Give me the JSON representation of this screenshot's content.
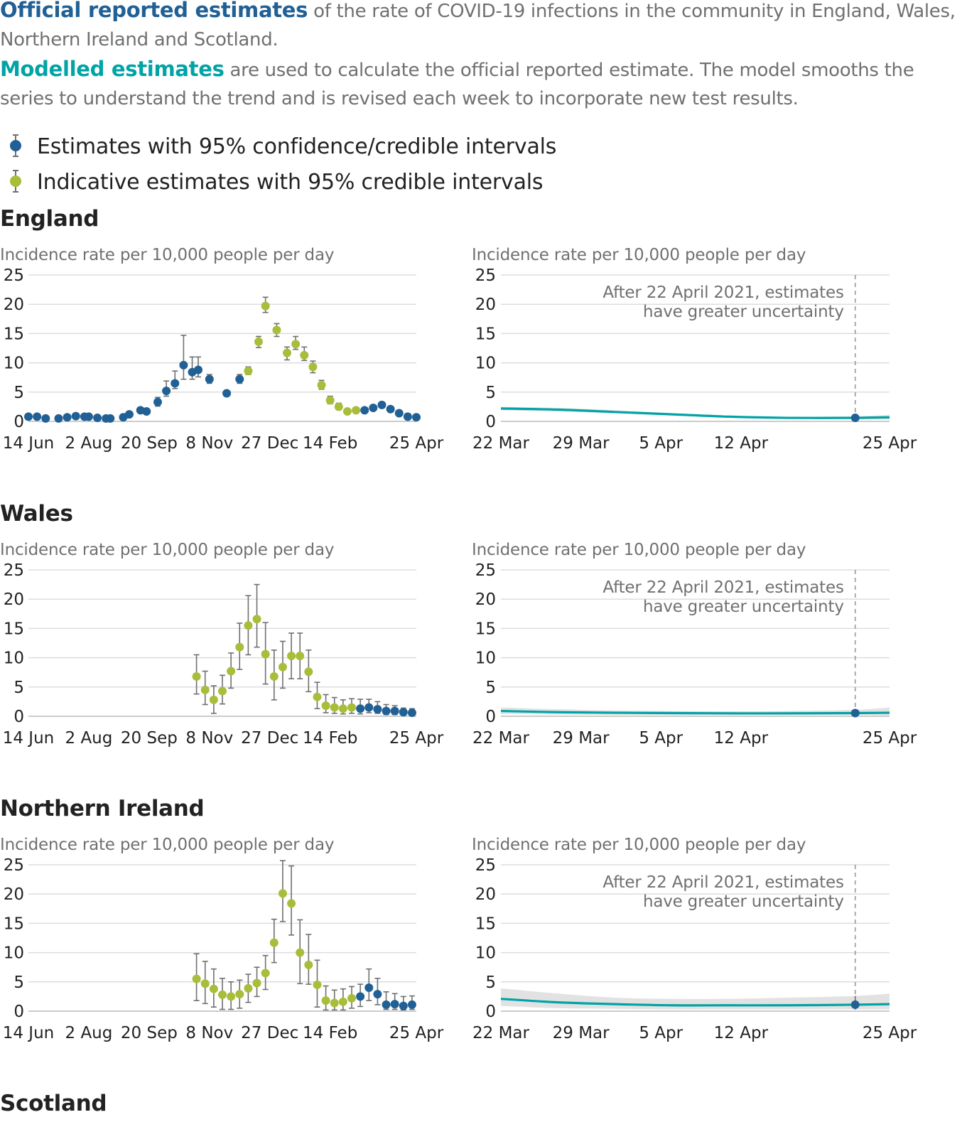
{
  "intro": {
    "official_lead": "Official reported estimates",
    "official_rest": " of the rate of COVID-19 infections in the community in England, Wales, Northern Ireland and Scotland.",
    "modelled_lead": "Modelled estimates",
    "modelled_rest": " are used to calculate the official reported estimate. The model smooths the series to understand the trend and is revised each week to incorporate new test results."
  },
  "legend": [
    {
      "label": "Estimates with 95% confidence/credible intervals",
      "color": "#206095"
    },
    {
      "label": "Indicative estimates with 95% credible intervals",
      "color": "#a8bd3a"
    }
  ],
  "colors": {
    "official": "#206095",
    "indicative": "#a8bd3a",
    "modelled": "#00a3a6",
    "band": "#e2e2e2",
    "errorbar": "#707070"
  },
  "chart_data": [
    {
      "region": "England",
      "left": {
        "type": "scatter",
        "ylabel": "Incidence rate per 10,000 people per day",
        "ylim": [
          0,
          25
        ],
        "yticks": [
          0,
          5,
          10,
          15,
          20,
          25
        ],
        "xticks": [
          "14 Jun",
          "2 Aug",
          "20 Sep",
          "8 Nov",
          "27 Dec",
          "14 Feb",
          "25 Apr"
        ],
        "xlim_weeks": [
          0,
          45
        ],
        "points": [
          {
            "w": 0,
            "y": 0.8,
            "lo": 0.5,
            "hi": 1.1,
            "k": "o"
          },
          {
            "w": 1,
            "y": 0.8,
            "lo": 0.5,
            "hi": 1.1,
            "k": "o"
          },
          {
            "w": 2,
            "y": 0.5,
            "lo": 0.3,
            "hi": 0.8,
            "k": "o"
          },
          {
            "w": 3.5,
            "y": 0.5,
            "lo": 0.3,
            "hi": 0.8,
            "k": "o"
          },
          {
            "w": 4.5,
            "y": 0.7,
            "lo": 0.4,
            "hi": 1.0,
            "k": "o"
          },
          {
            "w": 5.5,
            "y": 0.9,
            "lo": 0.6,
            "hi": 1.3,
            "k": "o"
          },
          {
            "w": 6.5,
            "y": 0.8,
            "lo": 0.5,
            "hi": 1.1,
            "k": "o"
          },
          {
            "w": 7,
            "y": 0.8,
            "lo": 0.5,
            "hi": 1.1,
            "k": "o"
          },
          {
            "w": 8,
            "y": 0.6,
            "lo": 0.4,
            "hi": 0.9,
            "k": "o"
          },
          {
            "w": 9,
            "y": 0.5,
            "lo": 0.3,
            "hi": 0.8,
            "k": "o"
          },
          {
            "w": 9.5,
            "y": 0.5,
            "lo": 0.3,
            "hi": 0.8,
            "k": "o"
          },
          {
            "w": 11,
            "y": 0.7,
            "lo": 0.4,
            "hi": 1.0,
            "k": "o"
          },
          {
            "w": 11.7,
            "y": 1.2,
            "lo": 0.9,
            "hi": 1.6,
            "k": "o"
          },
          {
            "w": 13,
            "y": 1.9,
            "lo": 1.5,
            "hi": 2.3,
            "k": "o"
          },
          {
            "w": 13.7,
            "y": 1.7,
            "lo": 1.3,
            "hi": 2.1,
            "k": "o"
          },
          {
            "w": 15,
            "y": 3.3,
            "lo": 2.6,
            "hi": 4.1,
            "k": "o"
          },
          {
            "w": 16,
            "y": 5.2,
            "lo": 4.3,
            "hi": 6.9,
            "k": "o"
          },
          {
            "w": 17,
            "y": 6.5,
            "lo": 5.6,
            "hi": 8.6,
            "k": "o"
          },
          {
            "w": 18,
            "y": 9.6,
            "lo": 7.2,
            "hi": 14.7,
            "k": "o"
          },
          {
            "w": 19,
            "y": 8.4,
            "lo": 7.2,
            "hi": 11.0,
            "k": "o"
          },
          {
            "w": 19.7,
            "y": 8.8,
            "lo": 7.6,
            "hi": 11.0,
            "k": "o"
          },
          {
            "w": 21,
            "y": 7.2,
            "lo": 6.5,
            "hi": 8.0,
            "k": "o"
          },
          {
            "w": 23,
            "y": 4.8,
            "lo": 4.3,
            "hi": 5.3,
            "k": "o"
          },
          {
            "w": 24.5,
            "y": 7.2,
            "lo": 6.5,
            "hi": 8.0,
            "k": "o"
          },
          {
            "w": 25.5,
            "y": 8.6,
            "lo": 8.0,
            "hi": 9.3,
            "k": "i"
          },
          {
            "w": 26.7,
            "y": 13.6,
            "lo": 12.6,
            "hi": 14.5,
            "k": "i"
          },
          {
            "w": 27.5,
            "y": 19.7,
            "lo": 18.6,
            "hi": 21.2,
            "k": "i"
          },
          {
            "w": 28.8,
            "y": 15.6,
            "lo": 14.5,
            "hi": 16.7,
            "k": "i"
          },
          {
            "w": 30,
            "y": 11.7,
            "lo": 10.5,
            "hi": 12.7,
            "k": "i"
          },
          {
            "w": 31,
            "y": 13.2,
            "lo": 12.3,
            "hi": 14.5,
            "k": "i"
          },
          {
            "w": 32,
            "y": 11.3,
            "lo": 10.4,
            "hi": 12.7,
            "k": "i"
          },
          {
            "w": 33,
            "y": 9.3,
            "lo": 8.3,
            "hi": 10.3,
            "k": "i"
          },
          {
            "w": 34,
            "y": 6.2,
            "lo": 5.5,
            "hi": 7.0,
            "k": "i"
          },
          {
            "w": 35,
            "y": 3.6,
            "lo": 3.0,
            "hi": 4.3,
            "k": "i"
          },
          {
            "w": 36,
            "y": 2.5,
            "lo": 2.0,
            "hi": 3.1,
            "k": "i"
          },
          {
            "w": 37,
            "y": 1.7,
            "lo": 1.4,
            "hi": 2.1,
            "k": "i"
          },
          {
            "w": 38,
            "y": 1.9,
            "lo": 1.6,
            "hi": 2.3,
            "k": "i"
          },
          {
            "w": 39,
            "y": 1.9,
            "lo": 1.6,
            "hi": 2.3,
            "k": "o"
          },
          {
            "w": 40,
            "y": 2.3,
            "lo": 2.0,
            "hi": 2.6,
            "k": "o"
          },
          {
            "w": 41,
            "y": 2.8,
            "lo": 2.4,
            "hi": 3.2,
            "k": "o"
          },
          {
            "w": 42,
            "y": 2.1,
            "lo": 1.8,
            "hi": 2.4,
            "k": "o"
          },
          {
            "w": 43,
            "y": 1.4,
            "lo": 1.1,
            "hi": 1.7,
            "k": "o"
          },
          {
            "w": 44,
            "y": 0.8,
            "lo": 0.6,
            "hi": 1.0,
            "k": "o"
          },
          {
            "w": 45,
            "y": 0.7,
            "lo": 0.5,
            "hi": 0.9,
            "k": "o"
          }
        ]
      },
      "right": {
        "type": "line",
        "ylabel": "Incidence rate per 10,000 people per day",
        "ylim": [
          0,
          25
        ],
        "yticks": [
          0,
          5,
          10,
          15,
          20,
          25
        ],
        "xticks": [
          "22 Mar",
          "29 Mar",
          "5 Apr",
          "12 Apr",
          "25 Apr"
        ],
        "xlim_days": [
          0,
          34
        ],
        "annotation": [
          "After 22 April 2021, estimates",
          "have greater uncertainty"
        ],
        "marker_day": 31,
        "x": [
          0,
          5,
          10,
          15,
          20,
          25,
          31,
          34
        ],
        "y": [
          2.2,
          2.0,
          1.6,
          1.2,
          0.8,
          0.6,
          0.6,
          0.7
        ],
        "lo": [
          1.9,
          1.7,
          1.4,
          1.0,
          0.6,
          0.45,
          0.35,
          0.3
        ],
        "hi": [
          2.5,
          2.3,
          1.9,
          1.4,
          1.0,
          0.8,
          0.9,
          1.1
        ],
        "official_point": {
          "day": 31,
          "y": 0.6,
          "lo": 0.35,
          "hi": 0.9
        }
      }
    },
    {
      "region": "Wales",
      "left": {
        "type": "scatter",
        "ylabel": "Incidence rate per 10,000 people per day",
        "ylim": [
          0,
          25
        ],
        "yticks": [
          0,
          5,
          10,
          15,
          20,
          25
        ],
        "xticks": [
          "14 Jun",
          "2 Aug",
          "20 Sep",
          "8 Nov",
          "27 Dec",
          "14 Feb",
          "25 Apr"
        ],
        "xlim_weeks": [
          0,
          45
        ],
        "points": [
          {
            "w": 19.5,
            "y": 6.8,
            "lo": 3.8,
            "hi": 10.5,
            "k": "i"
          },
          {
            "w": 20.5,
            "y": 4.5,
            "lo": 2.0,
            "hi": 7.7,
            "k": "i"
          },
          {
            "w": 21.5,
            "y": 2.8,
            "lo": 0.5,
            "hi": 5.2,
            "k": "i"
          },
          {
            "w": 22.5,
            "y": 4.3,
            "lo": 2.1,
            "hi": 7.0,
            "k": "i"
          },
          {
            "w": 23.5,
            "y": 7.7,
            "lo": 4.8,
            "hi": 10.8,
            "k": "i"
          },
          {
            "w": 24.5,
            "y": 11.8,
            "lo": 8.0,
            "hi": 15.9,
            "k": "i"
          },
          {
            "w": 25.5,
            "y": 15.5,
            "lo": 10.5,
            "hi": 20.6,
            "k": "i"
          },
          {
            "w": 26.5,
            "y": 16.6,
            "lo": 11.8,
            "hi": 22.5,
            "k": "i"
          },
          {
            "w": 27.5,
            "y": 10.6,
            "lo": 5.5,
            "hi": 16.0,
            "k": "i"
          },
          {
            "w": 28.5,
            "y": 6.8,
            "lo": 2.8,
            "hi": 11.3,
            "k": "i"
          },
          {
            "w": 29.5,
            "y": 8.4,
            "lo": 4.8,
            "hi": 12.8,
            "k": "i"
          },
          {
            "w": 30.5,
            "y": 10.3,
            "lo": 6.4,
            "hi": 14.2,
            "k": "i"
          },
          {
            "w": 31.5,
            "y": 10.3,
            "lo": 6.4,
            "hi": 14.2,
            "k": "i"
          },
          {
            "w": 32.5,
            "y": 7.6,
            "lo": 4.2,
            "hi": 11.3,
            "k": "i"
          },
          {
            "w": 33.5,
            "y": 3.3,
            "lo": 1.3,
            "hi": 5.8,
            "k": "i"
          },
          {
            "w": 34.5,
            "y": 1.8,
            "lo": 0.6,
            "hi": 3.7,
            "k": "i"
          },
          {
            "w": 35.5,
            "y": 1.5,
            "lo": 0.5,
            "hi": 3.2,
            "k": "i"
          },
          {
            "w": 36.5,
            "y": 1.3,
            "lo": 0.4,
            "hi": 2.8,
            "k": "i"
          },
          {
            "w": 37.5,
            "y": 1.5,
            "lo": 0.5,
            "hi": 3.0,
            "k": "i"
          },
          {
            "w": 38.5,
            "y": 1.3,
            "lo": 0.4,
            "hi": 2.9,
            "k": "o"
          },
          {
            "w": 39.5,
            "y": 1.5,
            "lo": 0.6,
            "hi": 2.9,
            "k": "o"
          },
          {
            "w": 40.5,
            "y": 1.2,
            "lo": 0.5,
            "hi": 2.5,
            "k": "o"
          },
          {
            "w": 41.5,
            "y": 0.9,
            "lo": 0.3,
            "hi": 2.0,
            "k": "o"
          },
          {
            "w": 42.5,
            "y": 0.9,
            "lo": 0.3,
            "hi": 1.8,
            "k": "o"
          },
          {
            "w": 43.5,
            "y": 0.7,
            "lo": 0.2,
            "hi": 1.4,
            "k": "o"
          },
          {
            "w": 44.5,
            "y": 0.6,
            "lo": 0.2,
            "hi": 1.3,
            "k": "o"
          }
        ]
      },
      "right": {
        "type": "line",
        "ylabel": "Incidence rate per 10,000 people per day",
        "ylim": [
          0,
          25
        ],
        "yticks": [
          0,
          5,
          10,
          15,
          20,
          25
        ],
        "xticks": [
          "22 Mar",
          "29 Mar",
          "5 Apr",
          "12 Apr",
          "25 Apr"
        ],
        "xlim_days": [
          0,
          34
        ],
        "annotation": [
          "After 22 April 2021, estimates",
          "have greater uncertainty"
        ],
        "marker_day": 31,
        "x": [
          0,
          5,
          10,
          15,
          20,
          25,
          31,
          34
        ],
        "y": [
          0.9,
          0.7,
          0.6,
          0.55,
          0.5,
          0.5,
          0.55,
          0.6
        ],
        "lo": [
          0.4,
          0.3,
          0.25,
          0.2,
          0.2,
          0.2,
          0.2,
          0.15
        ],
        "hi": [
          1.5,
          1.2,
          1.0,
          0.9,
          0.85,
          0.9,
          1.1,
          1.5
        ],
        "official_point": {
          "day": 31,
          "y": 0.55,
          "lo": 0.2,
          "hi": 1.1
        }
      }
    },
    {
      "region": "Northern Ireland",
      "left": {
        "type": "scatter",
        "ylabel": "Incidence rate per 10,000 people per day",
        "ylim": [
          0,
          25
        ],
        "yticks": [
          0,
          5,
          10,
          15,
          20,
          25
        ],
        "xticks": [
          "14 Jun",
          "2 Aug",
          "20 Sep",
          "8 Nov",
          "27 Dec",
          "14 Feb",
          "25 Apr"
        ],
        "xlim_weeks": [
          0,
          45
        ],
        "points": [
          {
            "w": 19.5,
            "y": 5.5,
            "lo": 1.8,
            "hi": 9.8,
            "k": "i"
          },
          {
            "w": 20.5,
            "y": 4.7,
            "lo": 1.3,
            "hi": 8.5,
            "k": "i"
          },
          {
            "w": 21.5,
            "y": 3.8,
            "lo": 0.7,
            "hi": 7.2,
            "k": "i"
          },
          {
            "w": 22.5,
            "y": 2.8,
            "lo": 0.3,
            "hi": 5.6,
            "k": "i"
          },
          {
            "w": 23.5,
            "y": 2.5,
            "lo": 0.3,
            "hi": 5.0,
            "k": "i"
          },
          {
            "w": 24.5,
            "y": 2.9,
            "lo": 0.5,
            "hi": 5.3,
            "k": "i"
          },
          {
            "w": 25.5,
            "y": 3.9,
            "lo": 1.5,
            "hi": 6.3,
            "k": "i"
          },
          {
            "w": 26.5,
            "y": 4.8,
            "lo": 2.5,
            "hi": 7.5,
            "k": "i"
          },
          {
            "w": 27.5,
            "y": 6.5,
            "lo": 3.7,
            "hi": 9.5,
            "k": "i"
          },
          {
            "w": 28.5,
            "y": 11.7,
            "lo": 8.3,
            "hi": 15.7,
            "k": "i"
          },
          {
            "w": 29.5,
            "y": 20.1,
            "lo": 15.3,
            "hi": 25.7,
            "k": "i"
          },
          {
            "w": 30.5,
            "y": 18.4,
            "lo": 13.0,
            "hi": 24.8,
            "k": "i"
          },
          {
            "w": 31.5,
            "y": 10.0,
            "lo": 4.7,
            "hi": 15.6,
            "k": "i"
          },
          {
            "w": 32.5,
            "y": 7.9,
            "lo": 4.6,
            "hi": 13.1,
            "k": "i"
          },
          {
            "w": 33.5,
            "y": 4.5,
            "lo": 0.7,
            "hi": 8.7,
            "k": "i"
          },
          {
            "w": 34.5,
            "y": 1.8,
            "lo": 0.2,
            "hi": 4.3,
            "k": "i"
          },
          {
            "w": 35.5,
            "y": 1.4,
            "lo": 0.2,
            "hi": 3.6,
            "k": "i"
          },
          {
            "w": 36.5,
            "y": 1.6,
            "lo": 0.2,
            "hi": 3.8,
            "k": "i"
          },
          {
            "w": 37.5,
            "y": 2.2,
            "lo": 0.5,
            "hi": 4.2,
            "k": "i"
          },
          {
            "w": 38.5,
            "y": 2.5,
            "lo": 0.8,
            "hi": 4.6,
            "k": "o"
          },
          {
            "w": 39.5,
            "y": 4.0,
            "lo": 1.8,
            "hi": 7.2,
            "k": "o"
          },
          {
            "w": 40.5,
            "y": 2.9,
            "lo": 1.1,
            "hi": 5.6,
            "k": "o"
          },
          {
            "w": 41.5,
            "y": 1.1,
            "lo": 0.3,
            "hi": 3.3,
            "k": "o"
          },
          {
            "w": 42.5,
            "y": 1.2,
            "lo": 0.3,
            "hi": 3.0,
            "k": "o"
          },
          {
            "w": 43.5,
            "y": 0.9,
            "lo": 0.2,
            "hi": 2.5,
            "k": "o"
          },
          {
            "w": 44.5,
            "y": 1.1,
            "lo": 0.3,
            "hi": 2.6,
            "k": "o"
          }
        ]
      },
      "right": {
        "type": "line",
        "ylabel": "Incidence rate per 10,000 people per day",
        "ylim": [
          0,
          25
        ],
        "yticks": [
          0,
          5,
          10,
          15,
          20,
          25
        ],
        "xticks": [
          "22 Mar",
          "29 Mar",
          "5 Apr",
          "12 Apr",
          "25 Apr"
        ],
        "xlim_days": [
          0,
          34
        ],
        "annotation": [
          "After 22 April 2021, estimates",
          "have greater uncertainty"
        ],
        "marker_day": 31,
        "x": [
          0,
          5,
          10,
          15,
          20,
          25,
          31,
          34
        ],
        "y": [
          2.1,
          1.5,
          1.2,
          1.0,
          1.0,
          1.0,
          1.1,
          1.2
        ],
        "lo": [
          0.9,
          0.5,
          0.4,
          0.3,
          0.3,
          0.3,
          0.3,
          0.3
        ],
        "hi": [
          3.9,
          3.0,
          2.3,
          2.1,
          2.1,
          2.3,
          2.6,
          3.0
        ],
        "official_point": {
          "day": 31,
          "y": 1.1,
          "lo": 0.3,
          "hi": 2.6
        }
      }
    }
  ],
  "footer": {
    "next_region": "Scotland"
  }
}
